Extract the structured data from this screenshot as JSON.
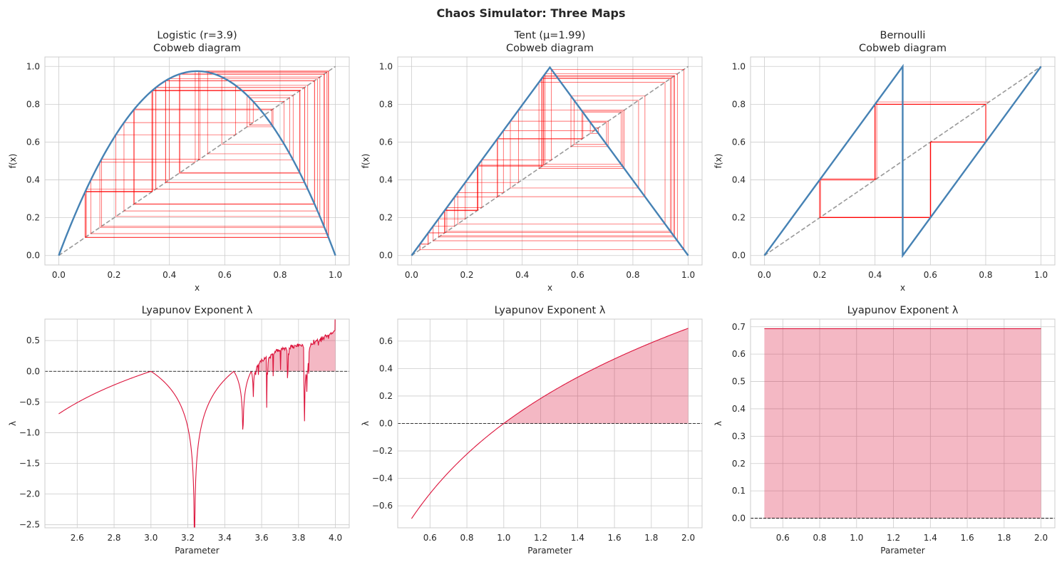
{
  "figure": {
    "suptitle": "Chaos Simulator: Three Maps"
  },
  "colors": {
    "map_curve": "#4682b4",
    "cobweb": "#ff0000",
    "diagonal": "#999999",
    "lyapunov_line": "#dc143c",
    "lyapunov_fill": "#dc143c",
    "grid": "#cccccc",
    "frame": "#cccccc"
  },
  "chart_data": [
    {
      "id": "logistic-cobweb",
      "type": "line",
      "title": [
        "Logistic (r=3.9)",
        "Cobweb diagram"
      ],
      "xlabel": "x",
      "ylabel": "f(x)",
      "xlim": [
        -0.05,
        1.05
      ],
      "ylim": [
        -0.05,
        1.05
      ],
      "xticks": [
        0.0,
        0.2,
        0.4,
        0.6,
        0.8,
        1.0
      ],
      "yticks": [
        0.0,
        0.2,
        0.4,
        0.6,
        0.8,
        1.0
      ],
      "tick_decimals": 1,
      "grid": true,
      "map": "logistic",
      "r": 3.9,
      "diagonal": true,
      "cobweb": {
        "x0": 0.1,
        "steps": 50
      }
    },
    {
      "id": "tent-cobweb",
      "type": "line",
      "title": [
        "Tent (μ=1.99)",
        "Cobweb diagram"
      ],
      "xlabel": "x",
      "ylabel": "f(x)",
      "xlim": [
        -0.05,
        1.05
      ],
      "ylim": [
        -0.05,
        1.05
      ],
      "xticks": [
        0.0,
        0.2,
        0.4,
        0.6,
        0.8,
        1.0
      ],
      "yticks": [
        0.0,
        0.2,
        0.4,
        0.6,
        0.8,
        1.0
      ],
      "tick_decimals": 1,
      "grid": true,
      "map": "tent",
      "mu": 1.99,
      "diagonal": true,
      "cobweb": {
        "x0": 0.0301,
        "steps": 50
      }
    },
    {
      "id": "bernoulli-cobweb",
      "type": "line",
      "title": [
        "Bernoulli",
        "Cobweb diagram"
      ],
      "xlabel": "x",
      "ylabel": "f(x)",
      "xlim": [
        -0.05,
        1.05
      ],
      "ylim": [
        -0.05,
        1.05
      ],
      "xticks": [
        0.0,
        0.2,
        0.4,
        0.6,
        0.8,
        1.0
      ],
      "yticks": [
        0.0,
        0.2,
        0.4,
        0.6,
        0.8,
        1.0
      ],
      "tick_decimals": 1,
      "grid": true,
      "map": "bernoulli",
      "diagonal": true,
      "cobweb": {
        "x0": 0.2,
        "steps": 50
      }
    },
    {
      "id": "logistic-lyapunov",
      "type": "area",
      "title": [
        "Lyapunov Exponent λ"
      ],
      "xlabel": "Parameter",
      "ylabel": "λ",
      "xlim": [
        2.425,
        4.075
      ],
      "ylim": [
        -2.55,
        0.85
      ],
      "xticks": [
        2.6,
        2.8,
        3.0,
        3.2,
        3.4,
        3.6,
        3.8,
        4.0
      ],
      "yticks": [
        -2.5,
        -2.0,
        -1.5,
        -1.0,
        -0.5,
        0.0,
        0.5
      ],
      "tick_decimals": 1,
      "grid": true,
      "zero_line": true,
      "fill_positive": true,
      "map": "logistic",
      "param_range": [
        2.5,
        4.0
      ],
      "samples": 600
    },
    {
      "id": "tent-lyapunov",
      "type": "area",
      "title": [
        "Lyapunov Exponent λ"
      ],
      "xlabel": "Parameter",
      "ylabel": "λ",
      "xlim": [
        0.425,
        2.075
      ],
      "ylim": [
        -0.76,
        0.76
      ],
      "xticks": [
        0.6,
        0.8,
        1.0,
        1.2,
        1.4,
        1.6,
        1.8,
        2.0
      ],
      "yticks": [
        -0.6,
        -0.4,
        -0.2,
        0.0,
        0.2,
        0.4,
        0.6
      ],
      "tick_decimals": 1,
      "grid": true,
      "zero_line": true,
      "fill_positive": true,
      "map": "tent",
      "param_range": [
        0.5,
        2.0
      ],
      "samples": 300
    },
    {
      "id": "bernoulli-lyapunov",
      "type": "area",
      "title": [
        "Lyapunov Exponent λ"
      ],
      "xlabel": "Parameter",
      "ylabel": "λ",
      "xlim": [
        0.425,
        2.075
      ],
      "ylim": [
        -0.035,
        0.728
      ],
      "xticks": [
        0.6,
        0.8,
        1.0,
        1.2,
        1.4,
        1.6,
        1.8,
        2.0
      ],
      "yticks": [
        0.0,
        0.1,
        0.2,
        0.3,
        0.4,
        0.5,
        0.6,
        0.7
      ],
      "tick_decimals": 1,
      "grid": true,
      "zero_line": true,
      "fill_positive": true,
      "map": "bernoulli",
      "param_range": [
        0.5,
        2.0
      ],
      "constant_value": 0.693
    }
  ]
}
